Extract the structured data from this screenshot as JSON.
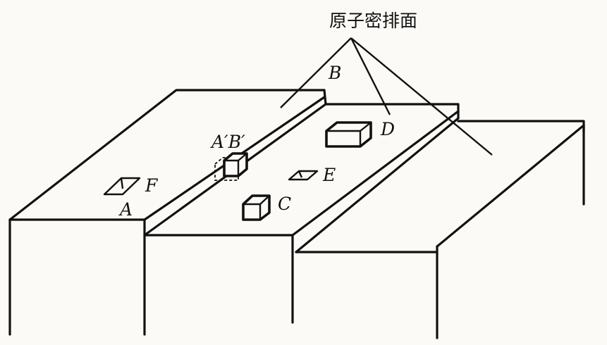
{
  "title": "原子密排面",
  "labels": {
    "B": "B",
    "D": "D",
    "A_prime_B_prime": "A′B′",
    "F": "F",
    "E": "E",
    "A": "A",
    "C": "C"
  }
}
